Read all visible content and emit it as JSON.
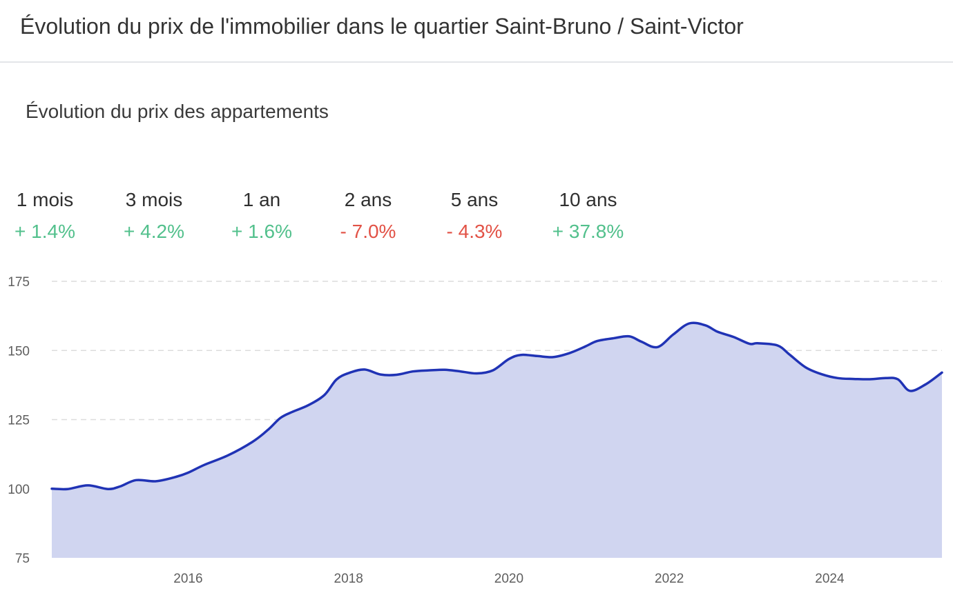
{
  "header": {
    "title": "Évolution du prix de l'immobilier dans le quartier Saint-Bruno / Saint-Victor"
  },
  "chart": {
    "subtitle": "Évolution du prix des appartements"
  },
  "stats": [
    {
      "period": "1 mois",
      "change": "+ 1.4%",
      "direction": "up"
    },
    {
      "period": "3 mois",
      "change": "+ 4.2%",
      "direction": "up"
    },
    {
      "period": "1 an",
      "change": "+ 1.6%",
      "direction": "up"
    },
    {
      "period": "2 ans",
      "change": "- 7.0%",
      "direction": "down"
    },
    {
      "period": "5 ans",
      "change": "- 4.3%",
      "direction": "down"
    },
    {
      "period": "10 ans",
      "change": "+ 37.8%",
      "direction": "up"
    }
  ],
  "colors": {
    "line": "#2033b5",
    "area": "#d0d5f0",
    "positive": "#52c08c",
    "negative": "#e25246",
    "grid": "#dcdcdc"
  },
  "chart_data": {
    "type": "area",
    "title": "Évolution du prix des appartements",
    "xlabel": "",
    "ylabel": "",
    "ylim": [
      75,
      175
    ],
    "xlim": [
      2014.3,
      2025.4
    ],
    "yticks": [
      175,
      150,
      125,
      100,
      75
    ],
    "xticks": [
      "2016",
      "2018",
      "2020",
      "2022",
      "2024"
    ],
    "grid": true,
    "series": [
      {
        "x": [
          2014.3,
          2014.5,
          2014.75,
          2015.0,
          2015.15,
          2015.35,
          2015.6,
          2015.85,
          2016.0,
          2016.2,
          2016.5,
          2016.8,
          2017.0,
          2017.15,
          2017.3,
          2017.5,
          2017.7,
          2017.85,
          2018.0,
          2018.2,
          2018.4,
          2018.6,
          2018.8,
          2019.0,
          2019.2,
          2019.4,
          2019.6,
          2019.8,
          2020.0,
          2020.15,
          2020.35,
          2020.55,
          2020.75,
          2020.95,
          2021.1,
          2021.3,
          2021.5,
          2021.65,
          2021.85,
          2022.05,
          2022.25,
          2022.45,
          2022.6,
          2022.8,
          2023.0,
          2023.1,
          2023.35,
          2023.5,
          2023.7,
          2023.9,
          2024.1,
          2024.3,
          2024.5,
          2024.7,
          2024.85,
          2025.0,
          2025.2,
          2025.4
        ],
        "values": [
          100,
          99.9,
          101.2,
          99.9,
          100.8,
          103.1,
          102.7,
          104.3,
          105.8,
          108.6,
          112.1,
          116.9,
          121.4,
          125.6,
          127.8,
          130.2,
          133.9,
          139.5,
          141.8,
          143.1,
          141.3,
          141.2,
          142.4,
          142.8,
          143.0,
          142.4,
          141.7,
          142.8,
          146.9,
          148.4,
          148.0,
          147.6,
          149.0,
          151.4,
          153.4,
          154.4,
          155.1,
          153.2,
          151.2,
          155.8,
          159.8,
          159.1,
          156.8,
          154.9,
          152.4,
          152.6,
          151.8,
          148.5,
          143.9,
          141.4,
          140.0,
          139.7,
          139.6,
          140.0,
          139.6,
          135.4,
          137.8,
          142.0
        ]
      }
    ]
  }
}
